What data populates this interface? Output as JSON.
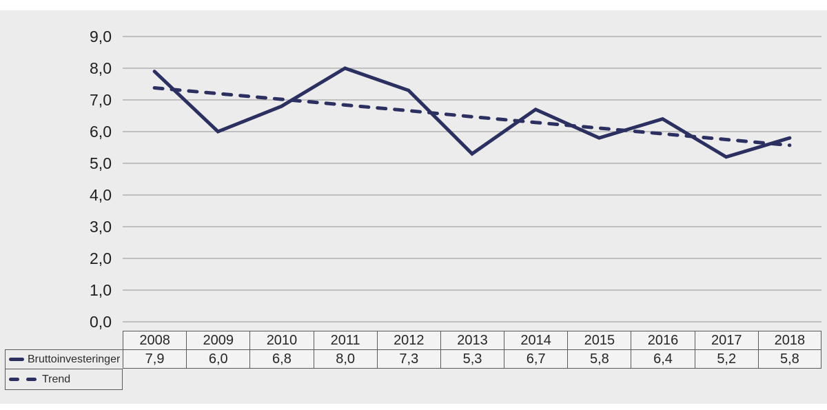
{
  "chart_data": {
    "type": "line",
    "title": "",
    "xlabel": "",
    "ylabel": "",
    "categories": [
      "2008",
      "2009",
      "2010",
      "2011",
      "2012",
      "2013",
      "2014",
      "2015",
      "2016",
      "2017",
      "2018"
    ],
    "series": [
      {
        "name": "Bruttoinvesteringer",
        "line_style": "solid",
        "values": [
          7.9,
          6.0,
          6.8,
          8.0,
          7.3,
          5.3,
          6.7,
          5.8,
          6.4,
          5.2,
          5.8
        ]
      },
      {
        "name": "Trend",
        "line_style": "dashed",
        "values": [
          7.38,
          7.2,
          7.02,
          6.84,
          6.66,
          6.47,
          6.29,
          6.11,
          5.93,
          5.75,
          5.57
        ]
      }
    ],
    "ylim": [
      0,
      9
    ],
    "ytick_step": 1,
    "ytick_labels": [
      "0,0",
      "1,0",
      "2,0",
      "3,0",
      "4,0",
      "5,0",
      "6,0",
      "7,0",
      "8,0",
      "9,0"
    ],
    "grid": true,
    "legend_position": "bottom-left",
    "colors": {
      "line": "#2b3060",
      "grid": "#949494",
      "panel_background": "#ececec",
      "cell_background": "#f3f3f3",
      "table_border": "#595959",
      "tick_text": "#1f1f1f"
    }
  },
  "table": {
    "header_years": [
      "2008",
      "2009",
      "2010",
      "2011",
      "2012",
      "2013",
      "2014",
      "2015",
      "2016",
      "2017",
      "2018"
    ],
    "rows": [
      {
        "label": "Bruttoinvesteringer",
        "marker": "solid-line",
        "values": [
          "7,9",
          "6,0",
          "6,8",
          "8,0",
          "7,3",
          "5,3",
          "6,7",
          "5,8",
          "6,4",
          "5,2",
          "5,8"
        ]
      },
      {
        "label": "Trend",
        "marker": "dashed-line",
        "values": []
      }
    ]
  }
}
